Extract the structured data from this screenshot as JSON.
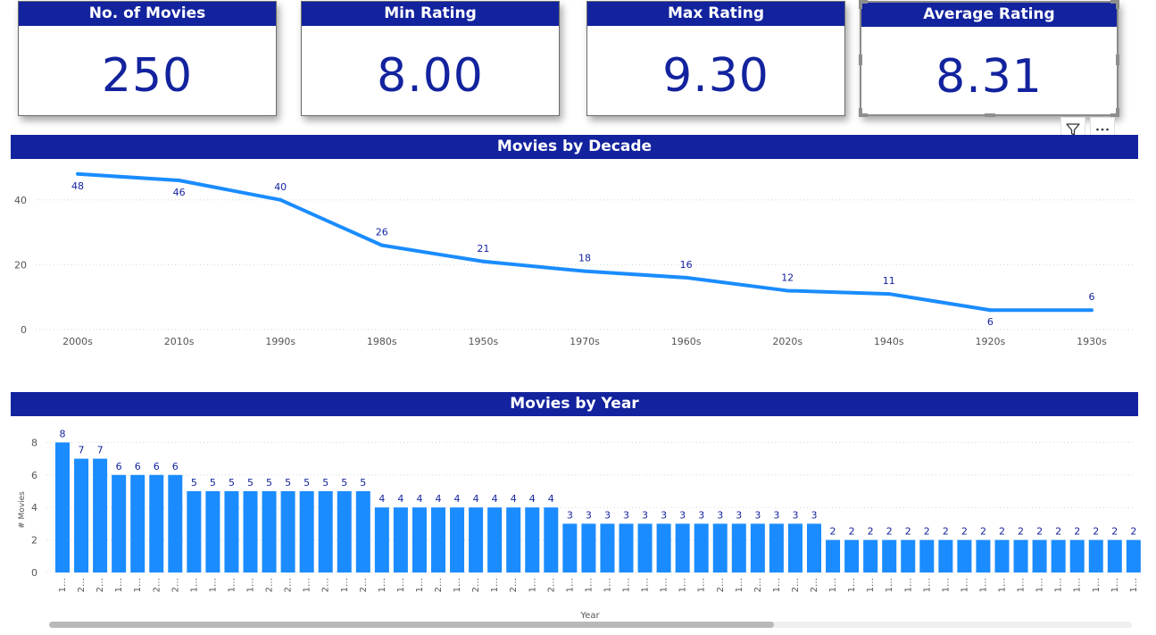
{
  "cards": [
    {
      "title": "No. of Movies",
      "value": "250"
    },
    {
      "title": "Min Rating",
      "value": "8.00"
    },
    {
      "title": "Max Rating",
      "value": "9.30"
    },
    {
      "title": "Average Rating",
      "value": "8.31"
    }
  ],
  "icons": {
    "filter": "filter-icon",
    "more": "more-options-icon"
  },
  "colors": {
    "header": "#13239e",
    "series": "#1a8cff",
    "label": "#13239e",
    "axis": "#555555"
  },
  "chart_data": [
    {
      "type": "line",
      "title": "Movies by Decade",
      "categories": [
        "2000s",
        "2010s",
        "1990s",
        "1980s",
        "1950s",
        "1970s",
        "1960s",
        "2020s",
        "1940s",
        "1920s",
        "1930s"
      ],
      "values": [
        48,
        46,
        40,
        26,
        21,
        18,
        16,
        12,
        11,
        6,
        6
      ],
      "yticks": [
        0,
        20,
        40
      ],
      "ylim": [
        0,
        50
      ],
      "grid": true
    },
    {
      "type": "bar",
      "title": "Movies by Year",
      "xlabel": "Year",
      "ylabel": "# Movies",
      "category_label": "1…",
      "values": [
        8,
        7,
        7,
        6,
        6,
        6,
        6,
        5,
        5,
        5,
        5,
        5,
        5,
        5,
        5,
        5,
        5,
        4,
        4,
        4,
        4,
        4,
        4,
        4,
        4,
        4,
        4,
        3,
        3,
        3,
        3,
        3,
        3,
        3,
        3,
        3,
        3,
        3,
        3,
        3,
        3,
        2,
        2,
        2,
        2,
        2,
        2,
        2,
        2,
        2,
        2,
        2,
        2,
        2,
        2,
        2,
        2,
        2
      ],
      "category_labels": [
        "1…",
        "2…",
        "2…",
        "1…",
        "1…",
        "2…",
        "2…",
        "1…",
        "1…",
        "1…",
        "1…",
        "2…",
        "2…",
        "1…",
        "2…",
        "1…",
        "2…",
        "1…",
        "1…",
        "1…",
        "2…",
        "1…",
        "2…",
        "1…",
        "2…",
        "1…",
        "2…",
        "1…",
        "1…",
        "1…",
        "1…",
        "1…",
        "1…",
        "1…",
        "1…",
        "2…",
        "1…",
        "2…",
        "1…",
        "2…",
        "2…",
        "1…",
        "1…",
        "1…",
        "1…",
        "1…",
        "1…",
        "1…",
        "1…",
        "1…",
        "1…",
        "1…",
        "1…",
        "1…",
        "1…",
        "1…",
        "1…",
        "1…"
      ],
      "yticks": [
        0,
        2,
        4,
        6,
        8
      ],
      "ylim": [
        0,
        8.3
      ],
      "grid": true
    }
  ]
}
